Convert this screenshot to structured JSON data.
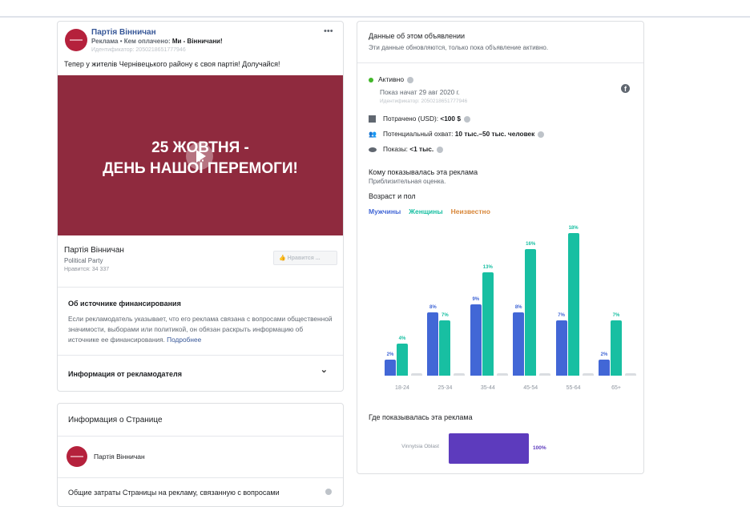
{
  "ad": {
    "page_name": "Партія Вінничан",
    "sponsor_prefix": "Реклама • Кем оплачено: ",
    "sponsor": "Ми - Вінничани!",
    "id_line": "Идентификатор: 2050218651777946",
    "text": "Тепер у жителів Чернівецького району є своя партія! Долучайся!",
    "image_line1": "25 ЖОВТНЯ -",
    "image_line2": "ДЕНЬ НАШОЇ ПЕРЕМОГИ!",
    "image_color": "#8f2a3e",
    "page_category": "Political Party",
    "likes": "Нравится: 34 337",
    "like_button": "Нравится ..."
  },
  "funding": {
    "title": "Об источнике финансирования",
    "text": "Если рекламодатель указывает, что его реклама связана с вопросами общественной значимости, выборами или политикой, он обязан раскрыть информацию об источнике ее финансирования.",
    "link": "Подробнее"
  },
  "advertiser_info": {
    "title": "Информация от рекламодателя"
  },
  "page_info": {
    "title": "Информация о Странице",
    "page_name": "Партія Вінничан",
    "spend_title": "Общие затраты Страницы на рекламу, связанную с вопросами"
  },
  "details": {
    "title": "Данные об этом объявлении",
    "subtitle": "Эти данные обновляются, только пока объявление активно.",
    "status": "Активно",
    "status_color": "#42b72a",
    "started": "Показ начат 29 авг 2020 г.",
    "id_line": "Идентификатор: 2050218651777946",
    "spent_label": "Потрачено (USD): ",
    "spent_value": "<100 $",
    "reach_label": "Потенциальный охват: ",
    "reach_value": "10 тыс.–50 тыс. человек",
    "impressions_label": "Показы: ",
    "impressions_value": "<1 тыс.",
    "audience_title": "Кому показывалась эта реклама",
    "audience_subtitle": "Приблизительная оценка.",
    "age_gender_title": "Возраст и пол",
    "where_title": "Где показывалась эта реклама"
  },
  "chart_data": [
    {
      "type": "bar",
      "categories": [
        "18-24",
        "25-34",
        "35-44",
        "45-54",
        "55-64",
        "65+"
      ],
      "series": [
        {
          "name": "Мужчины",
          "color": "#4267d6",
          "values": [
            2,
            8,
            9,
            8,
            7,
            2
          ],
          "labels": [
            "2%",
            "8%",
            "9%",
            "8%",
            "7%",
            "2%"
          ]
        },
        {
          "name": "Женщины",
          "color": "#18bfa2",
          "values": [
            4,
            7,
            13,
            16,
            18,
            7
          ],
          "labels": [
            "4%",
            "7%",
            "13%",
            "16%",
            "18%",
            "7%"
          ]
        },
        {
          "name": "Неизвестно",
          "color": "#d8873a",
          "values": [
            0,
            0,
            0,
            0,
            0,
            0
          ]
        }
      ],
      "ylim": [
        0,
        18
      ]
    },
    {
      "type": "bar",
      "orientation": "horizontal",
      "categories": [
        "Vinnytsia Oblast"
      ],
      "values": [
        100
      ],
      "labels": [
        "100%"
      ],
      "color": "#5d3bbd"
    }
  ]
}
